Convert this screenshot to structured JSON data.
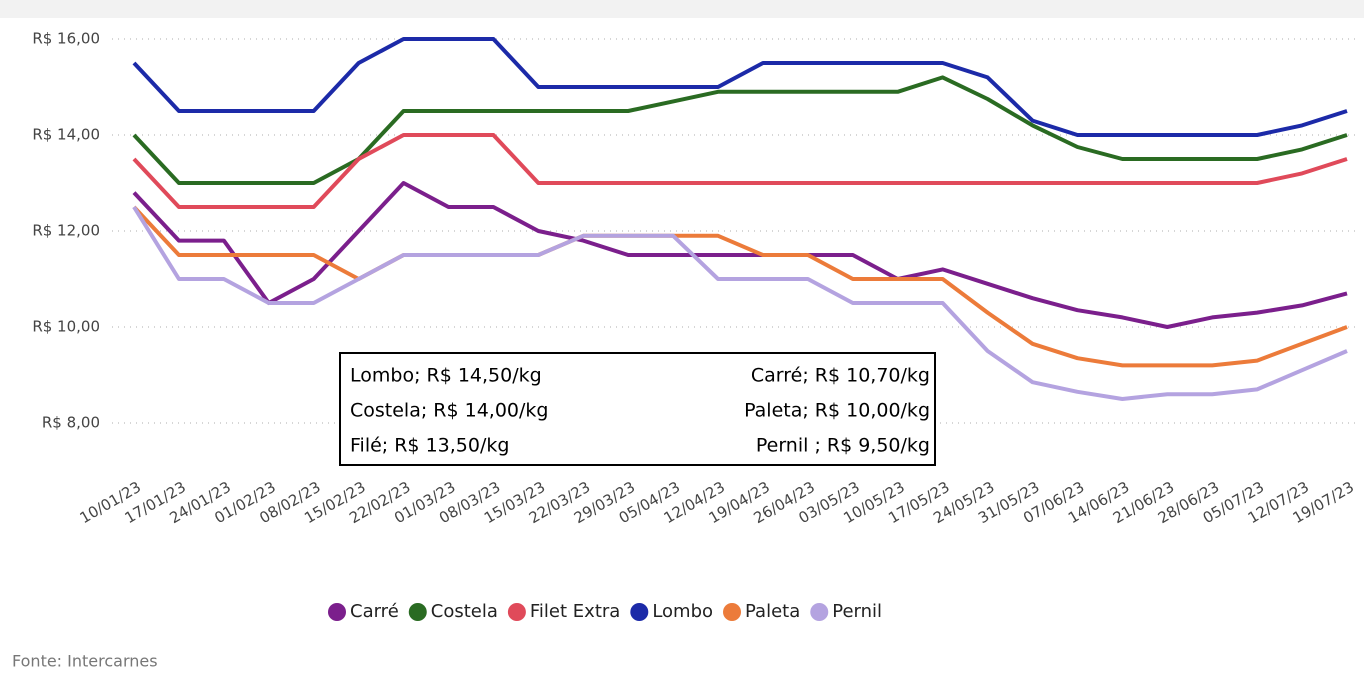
{
  "chart_data": {
    "type": "line",
    "categories": [
      "10/01/23",
      "17/01/23",
      "24/01/23",
      "01/02/23",
      "08/02/23",
      "15/02/23",
      "22/02/23",
      "01/03/23",
      "08/03/23",
      "15/03/23",
      "22/03/23",
      "29/03/23",
      "05/04/23",
      "12/04/23",
      "19/04/23",
      "26/04/23",
      "03/05/23",
      "10/05/23",
      "17/05/23",
      "24/05/23",
      "31/05/23",
      "07/06/23",
      "14/06/23",
      "21/06/23",
      "28/06/23",
      "05/07/23",
      "12/07/23",
      "19/07/23"
    ],
    "series": [
      {
        "name": "Carré",
        "color": "#7b1f8c",
        "values": [
          12.8,
          11.8,
          11.8,
          10.5,
          11,
          12,
          13,
          12.5,
          12.5,
          12,
          11.8,
          11.5,
          11.5,
          11.5,
          11.5,
          11.5,
          11.5,
          11,
          11.2,
          10.9,
          10.6,
          10.35,
          10.2,
          10,
          10.2,
          10.3,
          10.45,
          10.7
        ]
      },
      {
        "name": "Costela",
        "color": "#2a6b22",
        "values": [
          14,
          13,
          13,
          13,
          13,
          13.5,
          14.5,
          14.5,
          14.5,
          14.5,
          14.5,
          14.5,
          14.7,
          14.9,
          14.9,
          14.9,
          14.9,
          14.9,
          15.2,
          14.75,
          14.2,
          13.75,
          13.5,
          13.5,
          13.5,
          13.5,
          13.7,
          14
        ]
      },
      {
        "name": "Filet Extra",
        "color": "#e04a5a",
        "values": [
          13.5,
          12.5,
          12.5,
          12.5,
          12.5,
          13.5,
          14,
          14,
          14,
          13,
          13,
          13,
          13,
          13,
          13,
          13,
          13,
          13,
          13,
          13,
          13,
          13,
          13,
          13,
          13,
          13,
          13.2,
          13.5
        ]
      },
      {
        "name": "Lombo",
        "color": "#1c2aa8",
        "values": [
          15.5,
          14.5,
          14.5,
          14.5,
          14.5,
          15.5,
          16,
          16,
          16,
          15,
          15,
          15,
          15,
          15,
          15.5,
          15.5,
          15.5,
          15.5,
          15.5,
          15.2,
          14.3,
          14,
          14,
          14,
          14,
          14,
          14.2,
          14.5
        ]
      },
      {
        "name": "Paleta",
        "color": "#ec7b3a",
        "values": [
          12.5,
          11.5,
          11.5,
          11.5,
          11.5,
          11,
          11.5,
          11.5,
          11.5,
          11.5,
          11.9,
          11.9,
          11.9,
          11.9,
          11.5,
          11.5,
          11,
          11,
          11,
          10.3,
          9.65,
          9.35,
          9.2,
          9.2,
          9.2,
          9.3,
          9.65,
          10
        ]
      },
      {
        "name": "Pernil",
        "color": "#b4a3e0",
        "values": [
          12.5,
          11,
          11,
          10.5,
          10.5,
          11,
          11.5,
          11.5,
          11.5,
          11.5,
          11.9,
          11.9,
          11.9,
          11,
          11,
          11,
          10.5,
          10.5,
          10.5,
          9.5,
          8.85,
          8.65,
          8.5,
          8.6,
          8.6,
          8.7,
          9.1,
          9.5
        ]
      }
    ],
    "ylim": [
      7,
      16.5
    ],
    "yticks": [
      {
        "value": 8,
        "label": "R$ 8,00"
      },
      {
        "value": 10,
        "label": "R$ 10,00"
      },
      {
        "value": 12,
        "label": "R$ 12,00"
      },
      {
        "value": 14,
        "label": "R$ 14,00"
      },
      {
        "value": 16,
        "label": "R$ 16,00"
      }
    ],
    "grid": true,
    "annotations": [
      "Lombo; R$ 14,50/kg",
      "Carré; R$ 10,70/kg",
      "Costela; R$ 14,00/kg",
      "Paleta; R$ 10,00/kg",
      "Filé; R$ 13,50/kg",
      "Pernil ; R$ 9,50/kg"
    ],
    "legend": "bottom"
  },
  "source": "Fonte: Intercarnes"
}
